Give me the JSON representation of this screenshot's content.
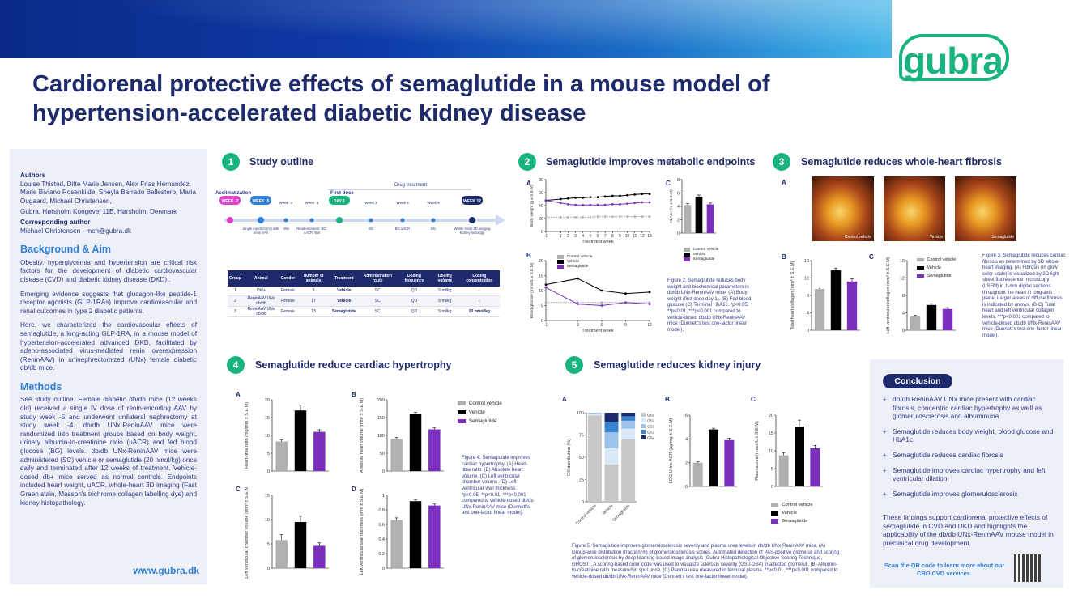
{
  "header": {
    "title": "Cardiorenal protective effects of semaglutide in a mouse model of hypertension-accelerated diabetic kidney disease",
    "logo": "gubra",
    "brand_color": "#18b47e",
    "navy": "#1d2a6b"
  },
  "sidebar": {
    "authors_heading": "Authors",
    "authors": "Louise Thisted, Ditte Marie Jensen, Alex Frias Hernandez, Marie Biviano Rosenkilde, Sheyla Barrado Ballestero, Maria Ougaard, Michael Christensen,",
    "affiliation": "Gubra, Hørsholm Kongevej 11B, Hørsholm, Denmark",
    "corr_heading": "Corresponding author",
    "corr": "Michael Christensen - mch@gubra.dk",
    "bg_heading": "Background & Aim",
    "bg_p1": "Obesity, hyperglycemia and hypertension are critical risk factors for the development of diabetic cardiovascular disease (CVD) and diabetic kidney disease (DKD) .",
    "bg_p2": "Emerging evidence suggests that glucagon-like peptide-1 receptor agonists (GLP-1RAs) improve cardiovascular and renal outcomes in type 2 diabetic patients.",
    "bg_p3": "Here, we characterized the cardiovascular effects of semaglutide, a long-acting GLP-1RA, in a mouse model of hypertension-accelerated advanced DKD, facilitated by adeno-associated virus-mediated renin overexpression (ReninAAV) in uninephrectomized (UNx) female diabetic db/db mice.",
    "methods_heading": "Methods",
    "methods": "See study outline. Female diabetic db/db mice (12 weeks old) received a single IV dose of renin-encoding AAV by study week -5 and underwent unilateral nephrectomy at study week -4. db/db UNx-ReninAAV mice were randomized into treatment groups based on body weight, urinary albumin-to-creatinine ratio (uACR) and fed blood glucose (BG) levels. db/db UNx-ReninAAV mice were administered (SC) vehicle or semaglutide (20 nmol/kg) once daily and terminated after 12 weeks of treatment. Vehicle-dosed db+ mice served as normal controls. Endpoints included heart weight, uACR, whole-heart 3D imaging (Fast Green stain, Masson's trichrome collagen labelling dye) and kidney histopathology.",
    "url": "www.gubra.dk"
  },
  "sections": {
    "s1": {
      "num": "1",
      "title": "Study outline"
    },
    "s2": {
      "num": "2",
      "title": "Semaglutide improves metabolic endpoints"
    },
    "s3": {
      "num": "3",
      "title": "Semaglutide reduces whole-heart fibrosis"
    },
    "s4": {
      "num": "4",
      "title": "Semaglutide reduce cardiac hypertrophy"
    },
    "s5": {
      "num": "5",
      "title": "Semaglutide reduces kidney injury"
    }
  },
  "timeline": {
    "label_acclim": "Acclimatization",
    "label_drug": "Drug treatment",
    "label_firstdose": "First dose",
    "weeks": [
      "WEEK -7",
      "WEEK -5",
      "Week -4",
      "Week -1",
      "DAY 1",
      "Week 3",
      "Week 6",
      "Week 9",
      "WEEK 12"
    ],
    "subs": [
      "",
      "Single injection (IV) with renin AAV",
      "UNx",
      "Randomization: BG, uACR, BW",
      "",
      "BG",
      "BG uACR",
      "BG",
      "Whole heart 3D imaging Kidney histology"
    ]
  },
  "table": {
    "headers": [
      "Group",
      "Animal",
      "Gender",
      "Number of animals",
      "Treatment",
      "Administration route",
      "Dosing frequency",
      "Dosing volume",
      "Dosing concentration"
    ],
    "rows": [
      [
        "1",
        "Db/+",
        "Female",
        "9",
        "Vehicle",
        "SC",
        "QD",
        "5 ml/kg",
        "-"
      ],
      [
        "2",
        "ReninAAV UNx db/db",
        "Female",
        "17",
        "Vehicle",
        "SC",
        "QD",
        "5 ml/kg",
        "-"
      ],
      [
        "3",
        "ReninAAV UNx db/db",
        "Female",
        "13",
        "Semaglutide",
        "SC",
        "QD",
        "5 ml/kg",
        "20 nmol/kg"
      ]
    ]
  },
  "legend": {
    "control": "Control vehicle",
    "vehicle": "Vehicle",
    "sema": "Semaglutide"
  },
  "colors": {
    "control": "#b0b0b0",
    "vehicle": "#000000",
    "sema": "#7b2fbe"
  },
  "panels": {
    "A": "A",
    "B": "B",
    "C": "C",
    "D": "D"
  },
  "figure_captions": {
    "f2": "Figure 2. Semaglutide reduces body weight and biochemical parameters in db/db UNx-ReninAAV mice. (A) Body weight (first dose day 1). (B) Fed blood glucose (C) Terminal HbA1c. *p<0.05, **p<0.01, ***p<0.001 compared to vehicle-dosed db/db UNx-ReninAAV mice (Dunnett's test one-factor linear model).",
    "f3": "Figure 3. Semaglutide reduces cardiac fibrosis as determined by 3D whole-heart imaging. (A) Fibrosis (in glow color scale) is visualized by 3D light sheet fluorescence microscopy (LSFM) in 1-mm digital sections throughout the heart in long-axis plane. Larger areas of diffuse fibrosis is indicated by arrows. (B-C) Total heart and left ventricular collagen levels. ***p<0.001 compared to vehicle-dosed db/db UNx-ReninAAV mice (Dunnett's test one-factor linear model).",
    "f4": "Figure 4. Semaglutide improves cardiac hypertrophy. (A) Heart-tibia ratio. (B) Absolute heart volume. (C) Left ventricular chamber volume. (D) Left ventricular wall thickness. *p<0.05, **p<0.01, ***p<0.001 compared to vehicle-dosed db/db UNx-ReninAAV mice (Dunnett's test one-factor linear model).",
    "f5": "Figure 5. Semaglutide improves glomerulosclerosis severity and plasma urea levels in db/db UNx-ReninAAV mice. (A) Group-wise distribution (fraction %) of glomerulosclerosis scores. Automated detection of PAS-positive glomeruli and scoring of glomerulosclerosis by deep learning-based image analysis (Gubra Histopathological Objective Scoring Technique, GHOST). A scoring-based color code was used to visualize sclerosis severity (GS0-GS4) in affected glomeruli. (B) Albumin-to-creatinine ratio measured in spot urine. (C) Plasma urea measured in terminal plasma. **p<0.01, ***p<0.001 compared to vehicle-dosed db/db UNx-ReninAAV mice (Dunnett's test one-factor linear model)."
  },
  "heart_images": [
    "Control vehicle",
    "Vehicle",
    "Semaglutide"
  ],
  "chart_data": [
    {
      "id": "bw",
      "type": "line",
      "x": [
        -1,
        1,
        2,
        3,
        4,
        5,
        6,
        7,
        8,
        9,
        10,
        11,
        12,
        13
      ],
      "xlabel": "Treatment week",
      "ylabel": "Body weight (g ± S.E.M)",
      "ylim": [
        0,
        80
      ],
      "yticks": [
        0,
        20,
        40,
        60,
        80
      ],
      "series": [
        {
          "name": "Vehicle",
          "values": [
            48,
            50,
            51,
            52,
            52,
            53,
            53,
            54,
            55,
            55,
            56,
            57,
            58,
            58
          ]
        },
        {
          "name": "Semaglutide",
          "values": [
            48,
            44,
            42,
            41,
            41,
            41,
            41,
            41,
            42,
            42,
            43,
            44,
            45,
            45
          ]
        },
        {
          "name": "Control vehicle",
          "values": [
            22,
            22,
            22,
            22,
            22,
            22,
            23,
            23,
            23,
            23,
            23,
            23,
            23,
            23
          ]
        }
      ]
    },
    {
      "id": "hba",
      "type": "bar",
      "ylabel": "HbA1c (% ± S.E.M)",
      "ylim": [
        0,
        8
      ],
      "yticks": [
        0,
        2,
        4,
        6,
        8
      ],
      "categories": [
        "Control vehicle",
        "Vehicle",
        "Semaglutide"
      ],
      "values": [
        4.2,
        5.4,
        4.3
      ],
      "errors": [
        0.2,
        0.3,
        0.2
      ]
    },
    {
      "id": "bg",
      "type": "line",
      "x": [
        -1,
        3,
        6,
        9,
        12
      ],
      "xlabel": "Treatment week",
      "ylabel": "Blood glucose (mmol/L ± S.E.M)",
      "ylim": [
        0,
        20
      ],
      "yticks": [
        0,
        5,
        10,
        15,
        20
      ],
      "series": [
        {
          "name": "Vehicle",
          "values": [
            12,
            14,
            10,
            9,
            9.5
          ]
        },
        {
          "name": "Control vehicle",
          "values": [
            6,
            6,
            6,
            6,
            6
          ]
        },
        {
          "name": "Semaglutide",
          "values": [
            11,
            5.5,
            5,
            6,
            5.5
          ]
        }
      ]
    },
    {
      "id": "th",
      "type": "bar",
      "ylabel": "Total heart collagen (mm³ ± S.E.M)",
      "ylim": [
        0,
        16
      ],
      "yticks": [
        0,
        4,
        8,
        12,
        16
      ],
      "categories": [
        "Control vehicle",
        "Vehicle",
        "Semaglutide"
      ],
      "values": [
        9.5,
        13.8,
        11.2
      ],
      "errors": [
        0.5,
        0.5,
        0.6
      ]
    },
    {
      "id": "lv",
      "type": "bar",
      "ylabel": "Left ventricular collagen (mm³ ± S.E.M)",
      "ylim": [
        0,
        16
      ],
      "yticks": [
        0,
        4,
        8,
        12,
        16
      ],
      "categories": [
        "Control vehicle",
        "Vehicle",
        "Semaglutide"
      ],
      "values": [
        3.2,
        5.8,
        4.9
      ],
      "errors": [
        0.2,
        0.3,
        0.3
      ]
    },
    {
      "id": "htr",
      "type": "bar",
      "ylabel": "Heart-tibia ratio (mg/mm ± S.E.M)",
      "ylim": [
        0,
        20
      ],
      "yticks": [
        0,
        5,
        10,
        15,
        20
      ],
      "categories": [
        "Control vehicle",
        "Vehicle",
        "Semaglutide"
      ],
      "values": [
        8.3,
        17,
        11
      ],
      "errors": [
        0.4,
        1.5,
        0.6
      ]
    },
    {
      "id": "ahv",
      "type": "bar",
      "ylabel": "Absolute heart volume (mm³ ± S.E.M)",
      "ylim": [
        0,
        200
      ],
      "yticks": [
        0,
        50,
        100,
        150,
        200
      ],
      "categories": [
        "Control vehicle",
        "Vehicle",
        "Semaglutide"
      ],
      "values": [
        90,
        160,
        117
      ],
      "errors": [
        4,
        5,
        4
      ]
    },
    {
      "id": "lvc",
      "type": "bar",
      "ylabel": "Left ventricular chamber volume (mm³ ± S.E.M)",
      "ylim": [
        0,
        15
      ],
      "yticks": [
        0,
        5,
        10,
        15
      ],
      "categories": [
        "Control vehicle",
        "Vehicle",
        "Semaglutide"
      ],
      "values": [
        5.8,
        9.5,
        4.6
      ],
      "errors": [
        1.1,
        1.2,
        0.6
      ]
    },
    {
      "id": "lvw",
      "type": "bar",
      "ylabel": "Left ventricular wall thickness (mm ± S.E.M)",
      "ylim": [
        0,
        1.0
      ],
      "yticks": [
        0.0,
        0.2,
        0.4,
        0.6,
        0.8,
        1.0
      ],
      "categories": [
        "Control vehicle",
        "Vehicle",
        "Semaglutide"
      ],
      "values": [
        0.66,
        0.92,
        0.86
      ],
      "errors": [
        0.03,
        0.02,
        0.02
      ]
    },
    {
      "id": "gs",
      "type": "bar",
      "ylabel": "GS distribution (%)",
      "ylim": [
        0,
        100
      ],
      "yticks": [
        0,
        25,
        50,
        75,
        100
      ],
      "categories": [
        "Control vehicle",
        "Vehicle",
        "Semaglutide"
      ],
      "series": [
        {
          "name": "GS0",
          "values": [
            97,
            42,
            70
          ]
        },
        {
          "name": "GS1",
          "values": [
            2,
            18,
            12
          ]
        },
        {
          "name": "GS2",
          "values": [
            1,
            18,
            9
          ]
        },
        {
          "name": "GS3",
          "values": [
            0,
            12,
            5
          ]
        },
        {
          "name": "GS4",
          "values": [
            0,
            10,
            4
          ]
        }
      ]
    },
    {
      "id": "acr",
      "type": "bar",
      "ylabel": "LOG Urine ACR (µg/mg ± S.E.M)",
      "ylim": [
        0,
        6
      ],
      "yticks": [
        0,
        2,
        4,
        6
      ],
      "categories": [
        "Control vehicle",
        "Vehicle",
        "Semaglutide"
      ],
      "values": [
        2.0,
        4.8,
        3.9
      ],
      "errors": [
        0.1,
        0.1,
        0.15
      ]
    },
    {
      "id": "urea",
      "type": "bar",
      "ylabel": "Plasmaurea (mmol/L ± S.E.M)",
      "ylim": [
        0,
        20
      ],
      "yticks": [
        0,
        5,
        10,
        15,
        20
      ],
      "categories": [
        "Control vehicle",
        "Vehicle",
        "Semaglutide"
      ],
      "values": [
        8.7,
        16.8,
        10.7
      ],
      "errors": [
        0.8,
        1.8,
        0.8
      ]
    }
  ],
  "conclusion": {
    "heading": "Conclusion",
    "items": [
      "db/db ReninAAV UNx mice present with cardiac fibrosis, concentric cardiac hypertrophy as well as glomerulosclerosis and albuminuria",
      "Semaglutide reduces body weight, blood glucose and HbA1c",
      "Semaglutide reduces cardiac fibrosis",
      "Semaglutide improves cardiac hypertrophy and left ventricular dilation",
      "Semaglutide improves glomerulosclerosis"
    ],
    "summary": "These findings support cardiorenal protective effects of semaglutide in CVD and DKD and highlights the applicability of the db/db UNx-ReninAAV mouse model in preclinical drug development.",
    "scan": "Scan the QR code to learn more about our CRO CVD services."
  }
}
